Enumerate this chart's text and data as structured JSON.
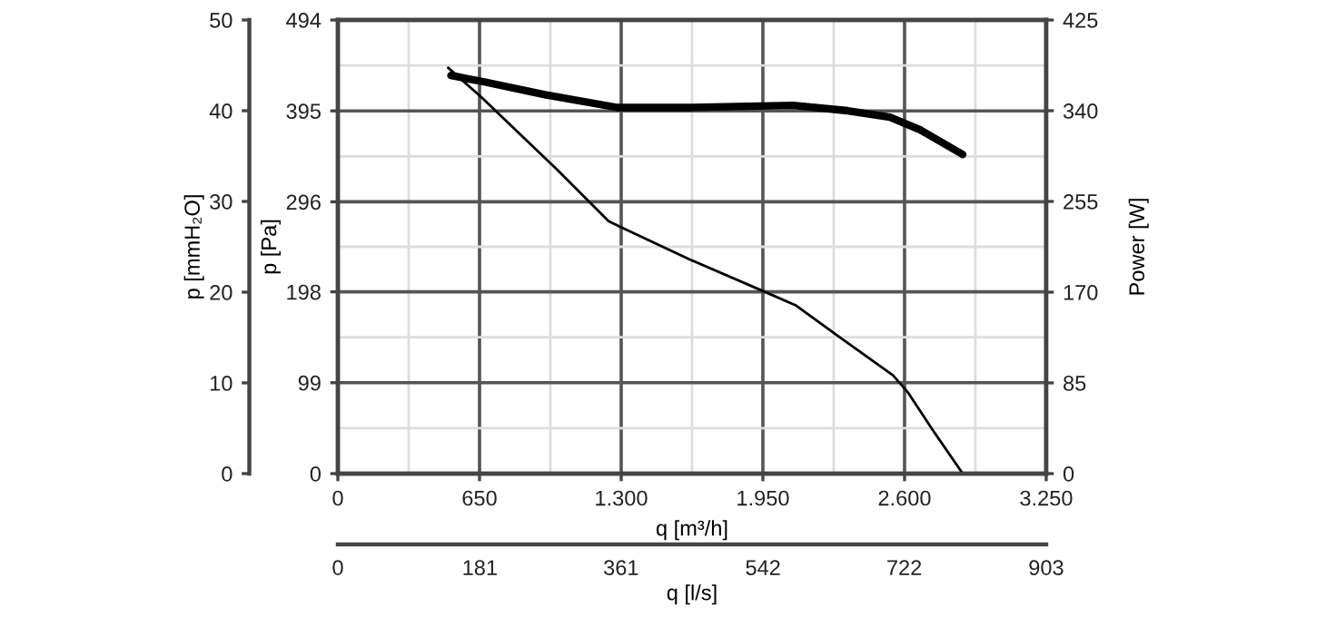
{
  "chart_data": {
    "type": "line",
    "xlabel": "q [m³/h]",
    "ylabel": "p [Pa]",
    "y2label": "Power [W]",
    "y3label": "p [mmH₂O]",
    "x2label": "q [l/s]",
    "xlim": [
      0,
      3250
    ],
    "xticks": [
      0,
      650,
      {
        "value": 1300,
        "label": "1.300"
      },
      {
        "value": 1950,
        "label": "1.950"
      },
      {
        "value": 2600,
        "label": "2.600"
      },
      {
        "value": 3250,
        "label": "3.250"
      }
    ],
    "x2lim": [
      0,
      903
    ],
    "x2ticks": [
      0,
      181,
      361,
      542,
      722,
      903
    ],
    "ylim": [
      0,
      494
    ],
    "yticks": [
      0,
      99,
      198,
      296,
      395,
      494
    ],
    "y2lim": [
      0,
      425
    ],
    "y2ticks": [
      0,
      85,
      170,
      255,
      340,
      425
    ],
    "y3lim": [
      0,
      50
    ],
    "y3ticks": [
      0,
      10,
      20,
      30,
      40,
      50
    ],
    "grid": true,
    "marker": "none",
    "line_style": "solid",
    "series": [
      {
        "color": "#000000",
        "axis": "y",
        "x": [
          506,
          658,
          1006,
          1242,
          1311,
          1617,
          1978,
          2103,
          2311,
          2547,
          2617,
          2728,
          2867
        ],
        "values": [
          442,
          410,
          331,
          275,
          267,
          233,
          196,
          183,
          147,
          107,
          88,
          48,
          0
        ]
      },
      {
        "color": "#000000",
        "axis": "y2",
        "x": [
          519,
          672,
          950,
          1283,
          1617,
          2089,
          2339,
          2533,
          2672,
          2867
        ],
        "values": [
          373,
          367,
          355,
          343,
          343,
          345,
          340,
          334,
          322,
          299
        ]
      }
    ]
  }
}
